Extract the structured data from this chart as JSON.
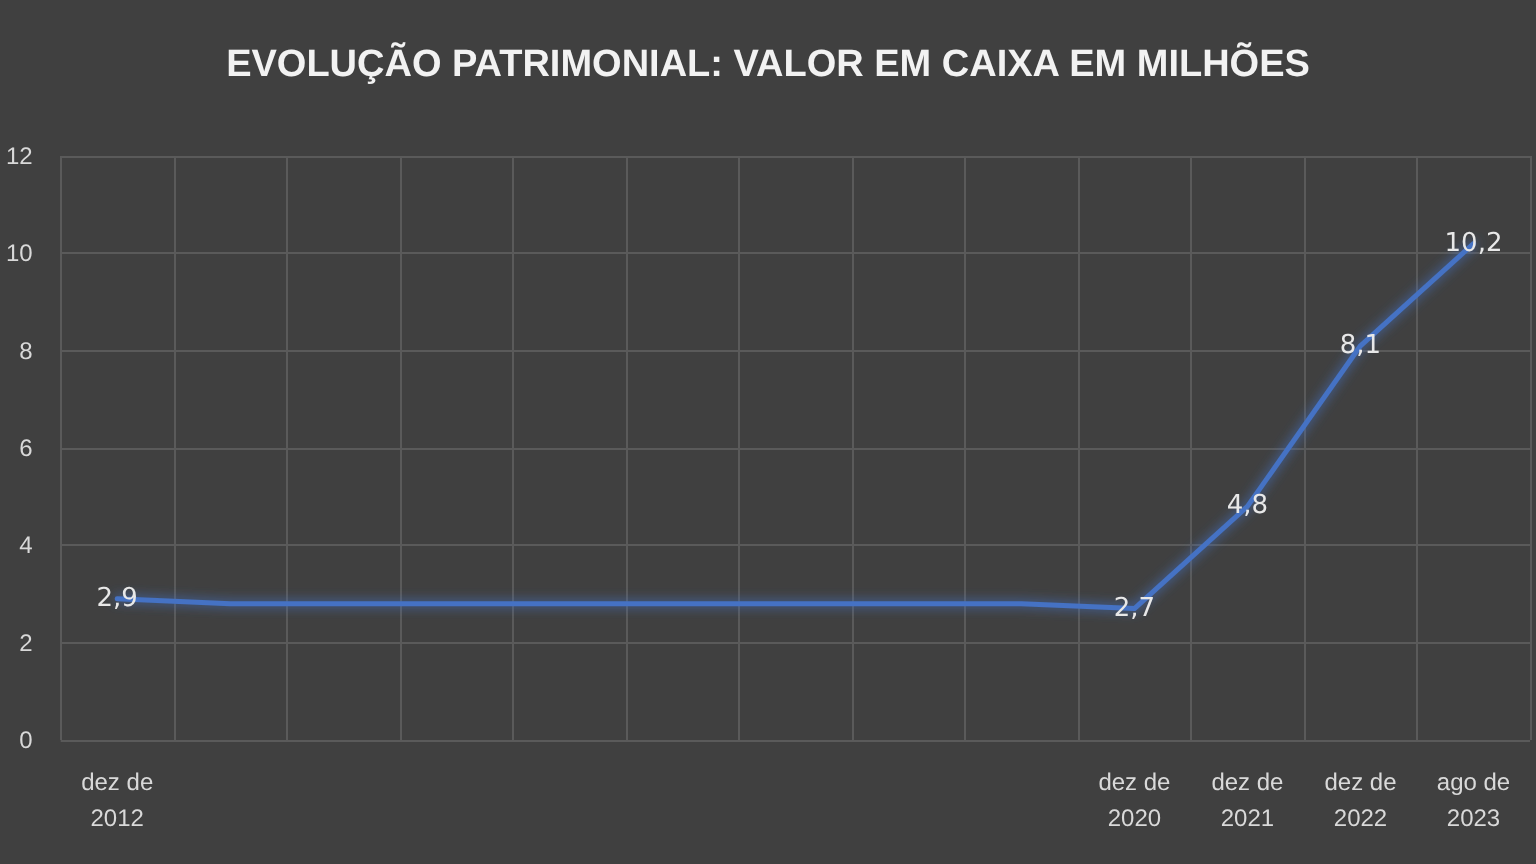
{
  "chart_data": {
    "type": "line",
    "title": "EVOLUÇÃO PATRIMONIAL: VALOR EM CAIXA EM MILHÕES",
    "categories": [
      "dez de 2012",
      null,
      null,
      null,
      null,
      null,
      null,
      null,
      null,
      "dez de 2020",
      "dez de 2021",
      "dez de 2022",
      "ago de 2023"
    ],
    "series": [
      {
        "color": "#4472c4",
        "values": [
          2.9,
          2.8,
          2.8,
          2.8,
          2.8,
          2.8,
          2.8,
          2.8,
          2.8,
          2.7,
          4.8,
          8.1,
          10.2
        ],
        "value_labels": [
          "2,9",
          null,
          null,
          null,
          null,
          null,
          null,
          null,
          null,
          "2,7",
          "4,8",
          "8,1",
          "10,2"
        ]
      }
    ],
    "ylim": [
      0,
      12
    ],
    "yticks": [
      0,
      2,
      4,
      6,
      8,
      10,
      12
    ],
    "grid": true,
    "marker": "none",
    "line_style": "solid"
  }
}
